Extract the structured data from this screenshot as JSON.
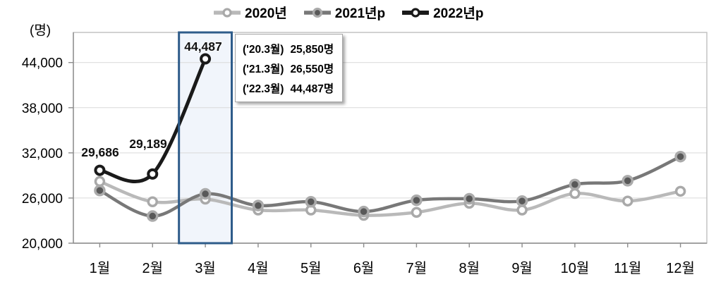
{
  "unit_label": "(명)",
  "chart_data": {
    "type": "line",
    "title": "",
    "categories": [
      "1월",
      "2월",
      "3월",
      "4월",
      "5월",
      "6월",
      "7월",
      "8월",
      "9월",
      "10월",
      "11월",
      "12월"
    ],
    "series": [
      {
        "name": "2020년",
        "color": "#b9b9b9",
        "line_width": 4.5,
        "marker": "ring",
        "marker_fill": "#ffffff",
        "marker_stroke": "#a9a9a9",
        "values": [
          28200,
          25500,
          25850,
          24400,
          24400,
          23700,
          24100,
          25300,
          24400,
          26600,
          25600,
          26900
        ]
      },
      {
        "name": "2021년p",
        "color": "#787878",
        "line_width": 4.5,
        "marker": "dot",
        "marker_fill": "#595959",
        "marker_stroke": "#ababab",
        "values": [
          27000,
          23600,
          26550,
          25000,
          25500,
          24200,
          25700,
          25900,
          25600,
          27800,
          28300,
          31500
        ]
      },
      {
        "name": "2022년p",
        "color": "#1a1a1a",
        "line_width": 5,
        "marker": "ring",
        "marker_fill": "#ffffff",
        "marker_stroke": "#1a1a1a",
        "values": [
          29686,
          29189,
          44487
        ]
      }
    ],
    "xlabel": "",
    "ylabel": "(명)",
    "ylim": [
      20000,
      48000
    ],
    "yticks": [
      20000,
      26000,
      32000,
      38000,
      44000
    ],
    "ytick_labels": [
      "20,000",
      "26,000",
      "32,000",
      "38,000",
      "44,000"
    ],
    "grid": true,
    "legend_position": "top-center",
    "highlight_category": "3월",
    "highlight_border": "#2e5c8a",
    "highlight_fill": "rgba(221,231,246,0.40)"
  },
  "annotations": {
    "point_labels": [
      "29,686",
      "29,189",
      "44,487"
    ],
    "callout": {
      "rows": [
        {
          "period": "('20.3월)",
          "value": "25,850명"
        },
        {
          "period": "('21.3월)",
          "value": "26,550명"
        },
        {
          "period": "('22.3월)",
          "value": "44,487명"
        }
      ]
    }
  },
  "axis_colors": {
    "grid": "#d9d9d9",
    "border": "#bfbfbf",
    "axis": "#8c8c8c",
    "text": "#000000"
  }
}
